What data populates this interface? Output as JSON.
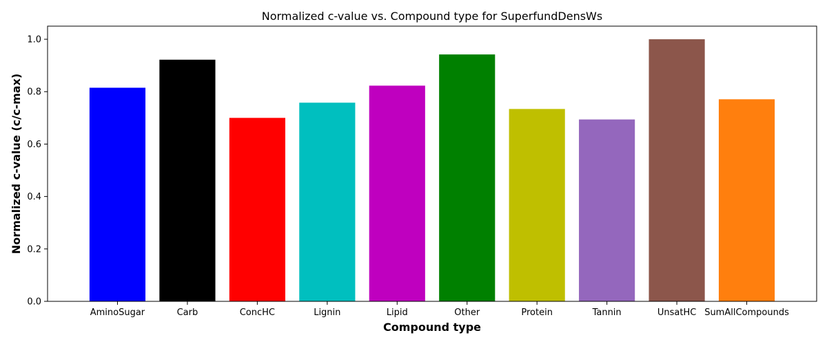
{
  "chart_data": {
    "type": "bar",
    "title": "Normalized c-value vs. Compound type for SuperfundDensWs",
    "xlabel": "Compound type",
    "ylabel": "Normalized c-value (c/c-max)",
    "categories": [
      "AminoSugar",
      "Carb",
      "ConcHC",
      "Lignin",
      "Lipid",
      "Other",
      "Protein",
      "Tannin",
      "UnsatHC",
      "SumAllCompounds"
    ],
    "values": [
      0.815,
      0.922,
      0.7,
      0.758,
      0.823,
      0.942,
      0.734,
      0.694,
      1.0,
      0.771
    ],
    "colors": [
      "#0000ff",
      "#000000",
      "#ff0000",
      "#00bfbf",
      "#bf00bf",
      "#008000",
      "#bfbf00",
      "#9467bd",
      "#8c564b",
      "#ff7f0e"
    ],
    "ylim": [
      0,
      1.05
    ],
    "yticks": [
      0.0,
      0.2,
      0.4,
      0.6,
      0.8,
      1.0
    ],
    "ytick_labels": [
      "0.0",
      "0.2",
      "0.4",
      "0.6",
      "0.8",
      "1.0"
    ],
    "grid": false,
    "legend": "none"
  }
}
